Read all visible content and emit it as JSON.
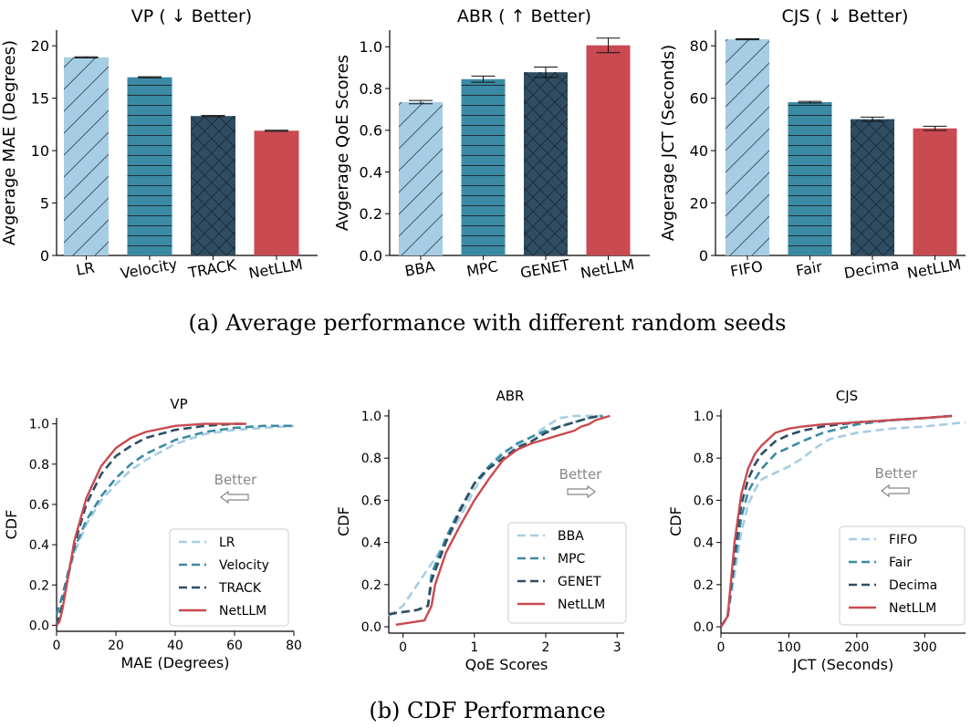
{
  "captions": {
    "a": "(a)  Average performance with different random seeds",
    "b": "(b)  CDF Performance"
  },
  "colors": {
    "light_blue": "#a6cde4",
    "teal": "#3b8aa3",
    "dark": "#2f4d62",
    "red": "#c94a50",
    "axis": "#000000",
    "better_arrow": "#888888"
  },
  "chart_data": [
    {
      "type": "bar",
      "title": "VP ( ↓ Better)",
      "ylabel": "Avgerage MAE (Degrees)",
      "categories": [
        "LR",
        "Velocity",
        "TRACK",
        "NetLLM"
      ],
      "values": [
        18.9,
        17.0,
        13.3,
        11.9
      ],
      "errors": [
        0.05,
        0.05,
        0.05,
        0.05
      ],
      "ylim": [
        0,
        21.5
      ],
      "yticks": [
        0,
        5,
        10,
        15,
        20
      ],
      "ytick_labels": [
        "0",
        "5",
        "10",
        "15",
        "20"
      ],
      "colors": [
        "#a6cde4",
        "#3b8aa3",
        "#2f4d62",
        "#c94a50"
      ],
      "hatches": [
        "diag",
        "hline",
        "cross",
        "none"
      ]
    },
    {
      "type": "bar",
      "title": "ABR ( ↑ Better)",
      "ylabel": "Avgerage QoE Scores",
      "categories": [
        "BBA",
        "MPC",
        "GENET",
        "NetLLM"
      ],
      "values": [
        0.735,
        0.845,
        0.878,
        1.007
      ],
      "errors": [
        0.008,
        0.015,
        0.025,
        0.035
      ],
      "ylim": [
        0,
        1.08
      ],
      "yticks": [
        0,
        0.2,
        0.4,
        0.6,
        0.8,
        1.0
      ],
      "ytick_labels": [
        "0.0",
        "0.2",
        "0.4",
        "0.6",
        "0.8",
        "1.0"
      ],
      "colors": [
        "#a6cde4",
        "#3b8aa3",
        "#2f4d62",
        "#c94a50"
      ],
      "hatches": [
        "diag",
        "hline",
        "cross",
        "none"
      ]
    },
    {
      "type": "bar",
      "title": "CJS ( ↓ Better)",
      "ylabel": "Avgerage JCT (Seconds)",
      "categories": [
        "FIFO",
        "Fair",
        "Decima",
        "NetLLM"
      ],
      "values": [
        82.5,
        58.5,
        52.0,
        48.5
      ],
      "errors": [
        0.2,
        0.3,
        0.8,
        0.8
      ],
      "ylim": [
        0,
        86
      ],
      "yticks": [
        0,
        20,
        40,
        60,
        80
      ],
      "ytick_labels": [
        "0",
        "20",
        "40",
        "60",
        "80"
      ],
      "colors": [
        "#a6cde4",
        "#3b8aa3",
        "#2f4d62",
        "#c94a50"
      ],
      "hatches": [
        "diag",
        "hline",
        "cross",
        "none"
      ]
    },
    {
      "type": "line",
      "title": "VP",
      "xlabel": "MAE (Degrees)",
      "ylabel": "CDF",
      "xlim": [
        0,
        80
      ],
      "ylim": [
        -0.03,
        1.03
      ],
      "xticks": [
        0,
        20,
        40,
        60,
        80
      ],
      "xtick_labels": [
        "0",
        "20",
        "40",
        "60",
        "80"
      ],
      "yticks": [
        0,
        0.2,
        0.4,
        0.6,
        0.8,
        1.0
      ],
      "ytick_labels": [
        "0.0",
        "0.2",
        "0.4",
        "0.6",
        "0.8",
        "1.0"
      ],
      "legend_position": "lower-right",
      "better": {
        "label": "Better",
        "direction": "left"
      },
      "series": [
        {
          "name": "LR",
          "color": "#a6cde4",
          "dashed": true,
          "x": [
            0,
            2,
            4,
            6,
            10,
            15,
            20,
            25,
            30,
            40,
            50,
            60,
            70,
            80
          ],
          "y": [
            0.0,
            0.12,
            0.25,
            0.36,
            0.5,
            0.62,
            0.7,
            0.77,
            0.82,
            0.9,
            0.95,
            0.97,
            0.98,
            0.99
          ]
        },
        {
          "name": "Velocity",
          "color": "#3b8aa3",
          "dashed": true,
          "x": [
            0,
            2,
            4,
            6,
            10,
            15,
            20,
            25,
            30,
            40,
            50,
            60,
            70,
            80
          ],
          "y": [
            0.05,
            0.15,
            0.27,
            0.38,
            0.52,
            0.64,
            0.73,
            0.8,
            0.85,
            0.92,
            0.96,
            0.98,
            0.99,
            0.99
          ]
        },
        {
          "name": "TRACK",
          "color": "#2f4d62",
          "dashed": true,
          "x": [
            0,
            2,
            4,
            6,
            10,
            15,
            20,
            25,
            30,
            40,
            50,
            60,
            64
          ],
          "y": [
            0.0,
            0.1,
            0.25,
            0.4,
            0.6,
            0.75,
            0.84,
            0.89,
            0.93,
            0.97,
            0.99,
            1.0,
            1.0
          ]
        },
        {
          "name": "NetLLM",
          "color": "#c94a50",
          "dashed": false,
          "x": [
            0,
            1,
            2,
            4,
            6,
            10,
            15,
            20,
            25,
            30,
            40,
            50,
            64
          ],
          "y": [
            0.0,
            0.02,
            0.08,
            0.25,
            0.42,
            0.63,
            0.79,
            0.88,
            0.93,
            0.96,
            0.99,
            1.0,
            1.0
          ]
        }
      ]
    },
    {
      "type": "line",
      "title": "ABR",
      "xlabel": "QoE Scores",
      "ylabel": "CDF",
      "xlim": [
        -0.2,
        3.1
      ],
      "ylim": [
        -0.03,
        1.03
      ],
      "xticks": [
        0,
        1,
        2,
        3
      ],
      "xtick_labels": [
        "0",
        "1",
        "2",
        "3"
      ],
      "yticks": [
        0,
        0.2,
        0.4,
        0.6,
        0.8,
        1.0
      ],
      "ytick_labels": [
        "0.0",
        "0.2",
        "0.4",
        "0.6",
        "0.8",
        "1.0"
      ],
      "legend_position": "lower-right",
      "better": {
        "label": "Better",
        "direction": "right"
      },
      "series": [
        {
          "name": "BBA",
          "color": "#a6cde4",
          "dashed": true,
          "x": [
            -0.2,
            0.0,
            0.2,
            0.4,
            0.6,
            0.8,
            1.0,
            1.2,
            1.4,
            1.6,
            1.8,
            2.0,
            2.2,
            2.4,
            2.6,
            2.8
          ],
          "y": [
            0.05,
            0.1,
            0.2,
            0.3,
            0.4,
            0.52,
            0.65,
            0.76,
            0.83,
            0.86,
            0.9,
            0.95,
            0.99,
            1.0,
            1.0,
            1.0
          ]
        },
        {
          "name": "MPC",
          "color": "#3b8aa3",
          "dashed": true,
          "x": [
            -0.2,
            0.0,
            0.2,
            0.35,
            0.4,
            0.6,
            0.8,
            1.0,
            1.2,
            1.4,
            1.6,
            1.8,
            2.0,
            2.2,
            2.4,
            2.6,
            2.8
          ],
          "y": [
            0.06,
            0.07,
            0.08,
            0.1,
            0.25,
            0.42,
            0.56,
            0.68,
            0.76,
            0.82,
            0.87,
            0.9,
            0.93,
            0.95,
            0.97,
            0.99,
            1.0
          ]
        },
        {
          "name": "GENET",
          "color": "#2f4d62",
          "dashed": true,
          "x": [
            -0.2,
            0.0,
            0.2,
            0.35,
            0.4,
            0.6,
            0.8,
            1.0,
            1.2,
            1.4,
            1.6,
            1.8,
            2.0,
            2.2,
            2.4,
            2.6,
            2.75
          ],
          "y": [
            0.06,
            0.07,
            0.08,
            0.1,
            0.22,
            0.4,
            0.55,
            0.68,
            0.75,
            0.8,
            0.85,
            0.88,
            0.92,
            0.95,
            0.97,
            0.99,
            1.0
          ]
        },
        {
          "name": "NetLLM",
          "color": "#c94a50",
          "dashed": false,
          "x": [
            -0.1,
            0.1,
            0.3,
            0.4,
            0.45,
            0.6,
            0.8,
            1.0,
            1.2,
            1.4,
            1.6,
            1.8,
            2.0,
            2.2,
            2.4,
            2.5,
            2.6,
            2.7,
            2.8,
            2.9
          ],
          "y": [
            0.01,
            0.02,
            0.03,
            0.1,
            0.2,
            0.35,
            0.48,
            0.6,
            0.7,
            0.79,
            0.84,
            0.87,
            0.89,
            0.91,
            0.93,
            0.95,
            0.96,
            0.98,
            0.99,
            1.0
          ]
        }
      ]
    },
    {
      "type": "line",
      "title": "CJS",
      "xlabel": "JCT (Seconds)",
      "ylabel": "CDF",
      "xlim": [
        0,
        360
      ],
      "ylim": [
        -0.03,
        1.03
      ],
      "xticks": [
        0,
        100,
        200,
        300
      ],
      "xtick_labels": [
        "0",
        "100",
        "200",
        "300"
      ],
      "yticks": [
        0,
        0.2,
        0.4,
        0.6,
        0.8,
        1.0
      ],
      "ytick_labels": [
        "0.0",
        "0.2",
        "0.4",
        "0.6",
        "0.8",
        "1.0"
      ],
      "legend_position": "lower-right",
      "better": {
        "label": "Better",
        "direction": "left"
      },
      "series": [
        {
          "name": "FIFO",
          "color": "#a6cde4",
          "dashed": true,
          "x": [
            0,
            10,
            20,
            30,
            40,
            50,
            60,
            80,
            100,
            120,
            140,
            160,
            200,
            250,
            300,
            360
          ],
          "y": [
            0.0,
            0.05,
            0.25,
            0.45,
            0.58,
            0.65,
            0.7,
            0.73,
            0.76,
            0.8,
            0.85,
            0.89,
            0.92,
            0.94,
            0.95,
            0.97
          ]
        },
        {
          "name": "Fair",
          "color": "#3b8aa3",
          "dashed": true,
          "x": [
            0,
            10,
            20,
            30,
            40,
            50,
            60,
            80,
            100,
            120,
            150,
            200,
            250,
            300,
            340
          ],
          "y": [
            0.0,
            0.05,
            0.3,
            0.52,
            0.64,
            0.7,
            0.75,
            0.82,
            0.85,
            0.88,
            0.92,
            0.96,
            0.98,
            0.99,
            1.0
          ]
        },
        {
          "name": "Decima",
          "color": "#2f4d62",
          "dashed": true,
          "x": [
            0,
            10,
            20,
            30,
            40,
            50,
            60,
            80,
            100,
            120,
            150,
            200,
            250,
            300,
            340
          ],
          "y": [
            0.0,
            0.05,
            0.35,
            0.58,
            0.7,
            0.77,
            0.82,
            0.88,
            0.91,
            0.93,
            0.95,
            0.97,
            0.98,
            0.99,
            1.0
          ]
        },
        {
          "name": "NetLLM",
          "color": "#c94a50",
          "dashed": false,
          "x": [
            0,
            10,
            20,
            30,
            40,
            50,
            60,
            80,
            100,
            120,
            150,
            200,
            250,
            300,
            340
          ],
          "y": [
            0.0,
            0.05,
            0.4,
            0.63,
            0.75,
            0.82,
            0.86,
            0.92,
            0.94,
            0.95,
            0.96,
            0.97,
            0.98,
            0.99,
            1.0
          ]
        }
      ]
    }
  ]
}
